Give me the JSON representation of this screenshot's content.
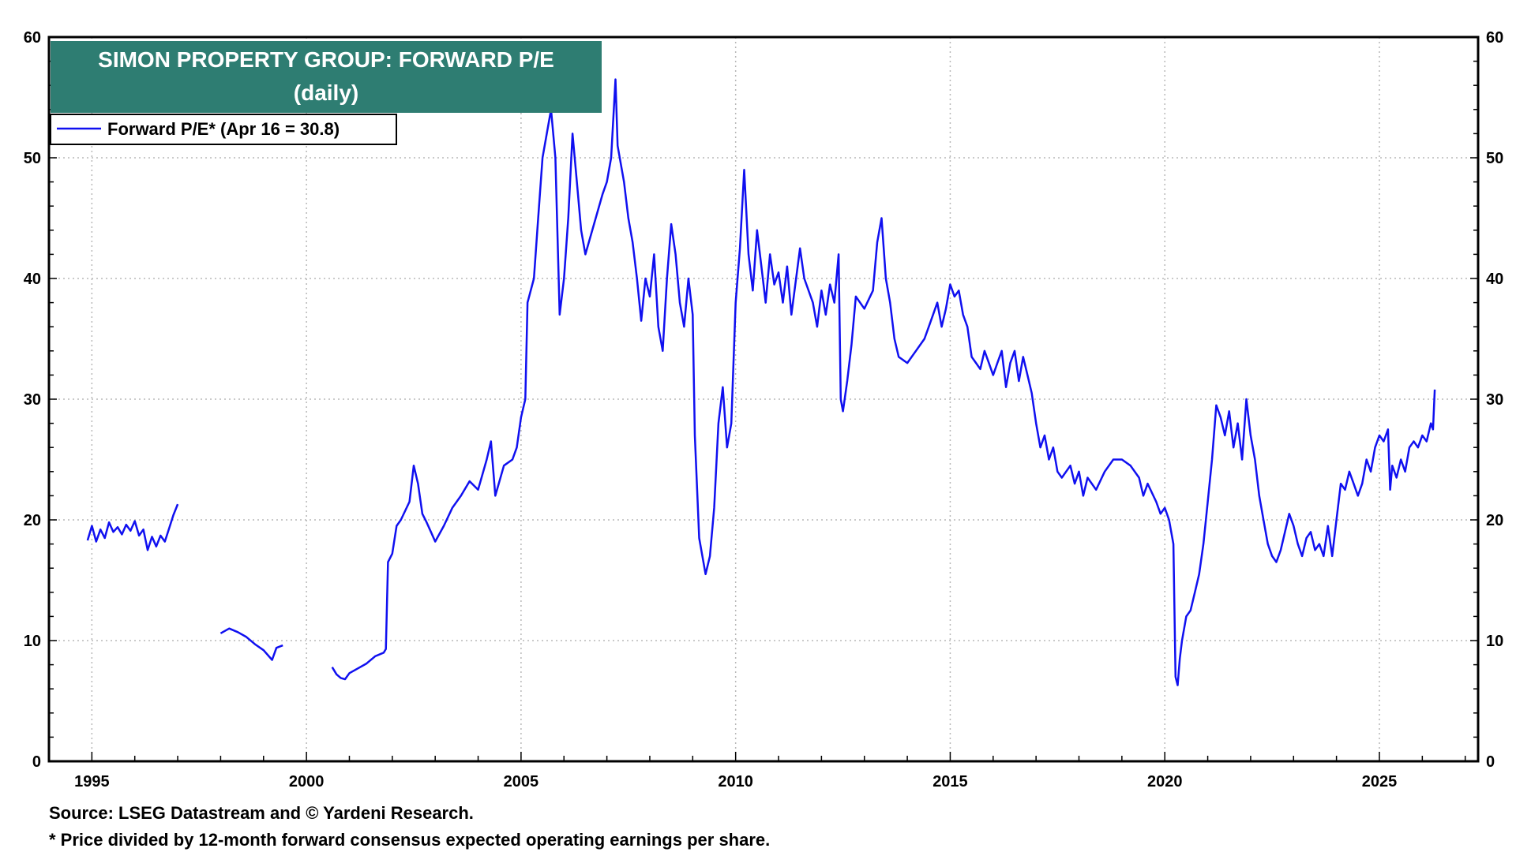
{
  "chart_data": {
    "type": "line",
    "title": "SIMON PROPERTY GROUP: FORWARD P/E",
    "subtitle": "(daily)",
    "xlabel": "",
    "ylabel": "",
    "ylim": [
      0,
      60
    ],
    "xlim": [
      1994.0,
      2027.3
    ],
    "y_ticks": [
      0,
      10,
      20,
      30,
      40,
      50,
      60
    ],
    "x_ticks": [
      1995,
      2000,
      2005,
      2010,
      2015,
      2020,
      2025
    ],
    "grid": true,
    "legend_position": "top-left",
    "line_color": "#1010f0",
    "title_bg_color": "#2e7d72",
    "series": [
      {
        "name": "Forward P/E* (Apr 16 = 30.8)",
        "segments": [
          [
            [
              1994.9,
              18.3
            ],
            [
              1995.0,
              19.5
            ],
            [
              1995.1,
              18.2
            ],
            [
              1995.2,
              19.2
            ],
            [
              1995.3,
              18.5
            ],
            [
              1995.4,
              19.8
            ],
            [
              1995.5,
              19.0
            ],
            [
              1995.6,
              19.4
            ],
            [
              1995.7,
              18.8
            ],
            [
              1995.8,
              19.6
            ],
            [
              1995.9,
              19.1
            ],
            [
              1996.0,
              19.9
            ],
            [
              1996.1,
              18.7
            ],
            [
              1996.2,
              19.2
            ],
            [
              1996.3,
              17.5
            ],
            [
              1996.4,
              18.6
            ],
            [
              1996.5,
              17.8
            ],
            [
              1996.6,
              18.7
            ],
            [
              1996.7,
              18.2
            ],
            [
              1996.8,
              19.3
            ],
            [
              1996.9,
              20.4
            ],
            [
              1997.0,
              21.3
            ]
          ],
          [
            [
              1998.0,
              10.6
            ],
            [
              1998.2,
              11.0
            ],
            [
              1998.4,
              10.7
            ],
            [
              1998.6,
              10.3
            ],
            [
              1998.8,
              9.7
            ],
            [
              1999.0,
              9.2
            ],
            [
              1999.2,
              8.4
            ],
            [
              1999.3,
              9.4
            ],
            [
              1999.45,
              9.6
            ]
          ],
          [
            [
              2000.6,
              7.8
            ],
            [
              2000.7,
              7.2
            ],
            [
              2000.8,
              6.9
            ],
            [
              2000.9,
              6.8
            ],
            [
              2001.0,
              7.3
            ],
            [
              2001.2,
              7.7
            ],
            [
              2001.4,
              8.1
            ],
            [
              2001.6,
              8.7
            ],
            [
              2001.8,
              9.0
            ],
            [
              2001.85,
              9.3
            ],
            [
              2001.9,
              16.5
            ],
            [
              2002.0,
              17.2
            ],
            [
              2002.1,
              19.5
            ],
            [
              2002.2,
              20.0
            ],
            [
              2002.4,
              21.5
            ],
            [
              2002.5,
              24.5
            ],
            [
              2002.6,
              23.0
            ],
            [
              2002.7,
              20.5
            ],
            [
              2002.8,
              19.8
            ],
            [
              2002.9,
              19.0
            ],
            [
              2003.0,
              18.2
            ],
            [
              2003.2,
              19.5
            ],
            [
              2003.4,
              21.0
            ],
            [
              2003.6,
              22.0
            ],
            [
              2003.8,
              23.2
            ],
            [
              2004.0,
              22.5
            ],
            [
              2004.2,
              25.0
            ],
            [
              2004.3,
              26.5
            ],
            [
              2004.4,
              22.0
            ],
            [
              2004.6,
              24.5
            ],
            [
              2004.8,
              25.0
            ],
            [
              2004.9,
              26.0
            ],
            [
              2005.0,
              28.5
            ],
            [
              2005.1,
              30.0
            ],
            [
              2005.15,
              38.0
            ],
            [
              2005.3,
              40.0
            ],
            [
              2005.4,
              45.0
            ],
            [
              2005.5,
              50.0
            ],
            [
              2005.6,
              52.0
            ],
            [
              2005.7,
              54.0
            ],
            [
              2005.8,
              50.0
            ],
            [
              2005.9,
              37.0
            ],
            [
              2006.0,
              40.0
            ],
            [
              2006.1,
              45.0
            ],
            [
              2006.2,
              52.0
            ],
            [
              2006.3,
              48.0
            ],
            [
              2006.4,
              44.0
            ],
            [
              2006.5,
              42.0
            ],
            [
              2006.7,
              44.5
            ],
            [
              2006.9,
              47.0
            ],
            [
              2007.0,
              48.0
            ],
            [
              2007.1,
              50.0
            ],
            [
              2007.2,
              56.5
            ],
            [
              2007.25,
              51.0
            ],
            [
              2007.4,
              48.0
            ],
            [
              2007.5,
              45.0
            ],
            [
              2007.6,
              43.0
            ],
            [
              2007.7,
              40.0
            ],
            [
              2007.8,
              36.5
            ],
            [
              2007.9,
              40.0
            ],
            [
              2008.0,
              38.5
            ],
            [
              2008.1,
              42.0
            ],
            [
              2008.2,
              36.0
            ],
            [
              2008.3,
              34.0
            ],
            [
              2008.4,
              40.0
            ],
            [
              2008.5,
              44.5
            ],
            [
              2008.6,
              42.0
            ],
            [
              2008.7,
              38.0
            ],
            [
              2008.8,
              36.0
            ],
            [
              2008.9,
              40.0
            ],
            [
              2009.0,
              37.0
            ],
            [
              2009.05,
              27.0
            ],
            [
              2009.15,
              18.5
            ],
            [
              2009.3,
              15.5
            ],
            [
              2009.4,
              17.0
            ],
            [
              2009.5,
              21.0
            ],
            [
              2009.6,
              28.0
            ],
            [
              2009.7,
              31.0
            ],
            [
              2009.8,
              26.0
            ],
            [
              2009.9,
              28.0
            ],
            [
              2010.0,
              38.0
            ],
            [
              2010.1,
              42.5
            ],
            [
              2010.2,
              49.0
            ],
            [
              2010.3,
              42.0
            ],
            [
              2010.4,
              39.0
            ],
            [
              2010.5,
              44.0
            ],
            [
              2010.6,
              41.0
            ],
            [
              2010.7,
              38.0
            ],
            [
              2010.8,
              42.0
            ],
            [
              2010.9,
              39.5
            ],
            [
              2011.0,
              40.5
            ],
            [
              2011.1,
              38.0
            ],
            [
              2011.2,
              41.0
            ],
            [
              2011.3,
              37.0
            ],
            [
              2011.5,
              42.5
            ],
            [
              2011.6,
              40.0
            ],
            [
              2011.8,
              38.0
            ],
            [
              2011.9,
              36.0
            ],
            [
              2012.0,
              39.0
            ],
            [
              2012.1,
              37.0
            ],
            [
              2012.2,
              39.5
            ],
            [
              2012.3,
              38.0
            ],
            [
              2012.4,
              42.0
            ],
            [
              2012.45,
              30.0
            ],
            [
              2012.5,
              29.0
            ],
            [
              2012.6,
              31.5
            ],
            [
              2012.7,
              34.5
            ],
            [
              2012.8,
              38.5
            ],
            [
              2013.0,
              37.5
            ],
            [
              2013.2,
              39.0
            ],
            [
              2013.3,
              43.0
            ],
            [
              2013.4,
              45.0
            ],
            [
              2013.5,
              40.0
            ],
            [
              2013.6,
              38.0
            ],
            [
              2013.7,
              35.0
            ],
            [
              2013.8,
              33.5
            ],
            [
              2014.0,
              33.0
            ],
            [
              2014.2,
              34.0
            ],
            [
              2014.4,
              35.0
            ],
            [
              2014.5,
              36.0
            ],
            [
              2014.6,
              37.0
            ],
            [
              2014.7,
              38.0
            ],
            [
              2014.8,
              36.0
            ],
            [
              2014.9,
              37.5
            ],
            [
              2015.0,
              39.5
            ],
            [
              2015.1,
              38.5
            ],
            [
              2015.2,
              39.0
            ],
            [
              2015.3,
              37.0
            ],
            [
              2015.4,
              36.0
            ],
            [
              2015.5,
              33.5
            ],
            [
              2015.6,
              33.0
            ],
            [
              2015.7,
              32.5
            ],
            [
              2015.8,
              34.0
            ],
            [
              2015.9,
              33.0
            ],
            [
              2016.0,
              32.0
            ],
            [
              2016.1,
              33.0
            ],
            [
              2016.2,
              34.0
            ],
            [
              2016.3,
              31.0
            ],
            [
              2016.4,
              33.0
            ],
            [
              2016.5,
              34.0
            ],
            [
              2016.6,
              31.5
            ],
            [
              2016.7,
              33.5
            ],
            [
              2016.8,
              32.0
            ],
            [
              2016.9,
              30.5
            ],
            [
              2017.0,
              28.0
            ],
            [
              2017.1,
              26.0
            ],
            [
              2017.2,
              27.0
            ],
            [
              2017.3,
              25.0
            ],
            [
              2017.4,
              26.0
            ],
            [
              2017.5,
              24.0
            ],
            [
              2017.6,
              23.5
            ],
            [
              2017.8,
              24.5
            ],
            [
              2017.9,
              23.0
            ],
            [
              2018.0,
              24.0
            ],
            [
              2018.1,
              22.0
            ],
            [
              2018.2,
              23.5
            ],
            [
              2018.3,
              23.0
            ],
            [
              2018.4,
              22.5
            ],
            [
              2018.6,
              24.0
            ],
            [
              2018.8,
              25.0
            ],
            [
              2019.0,
              25.0
            ],
            [
              2019.2,
              24.5
            ],
            [
              2019.4,
              23.5
            ],
            [
              2019.5,
              22.0
            ],
            [
              2019.6,
              23.0
            ],
            [
              2019.8,
              21.5
            ],
            [
              2019.9,
              20.5
            ],
            [
              2020.0,
              21.0
            ],
            [
              2020.1,
              20.0
            ],
            [
              2020.2,
              18.0
            ],
            [
              2020.25,
              7.0
            ],
            [
              2020.3,
              6.3
            ],
            [
              2020.35,
              8.5
            ],
            [
              2020.4,
              10.0
            ],
            [
              2020.5,
              12.0
            ],
            [
              2020.6,
              12.5
            ],
            [
              2020.7,
              14.0
            ],
            [
              2020.8,
              15.5
            ],
            [
              2020.9,
              18.0
            ],
            [
              2021.0,
              21.5
            ],
            [
              2021.1,
              25.0
            ],
            [
              2021.2,
              29.5
            ],
            [
              2021.3,
              28.5
            ],
            [
              2021.4,
              27.0
            ],
            [
              2021.5,
              29.0
            ],
            [
              2021.6,
              26.0
            ],
            [
              2021.7,
              28.0
            ],
            [
              2021.8,
              25.0
            ],
            [
              2021.9,
              30.0
            ],
            [
              2022.0,
              27.0
            ],
            [
              2022.1,
              25.0
            ],
            [
              2022.2,
              22.0
            ],
            [
              2022.3,
              20.0
            ],
            [
              2022.4,
              18.0
            ],
            [
              2022.5,
              17.0
            ],
            [
              2022.6,
              16.5
            ],
            [
              2022.7,
              17.5
            ],
            [
              2022.8,
              19.0
            ],
            [
              2022.9,
              20.5
            ],
            [
              2023.0,
              19.5
            ],
            [
              2023.1,
              18.0
            ],
            [
              2023.2,
              17.0
            ],
            [
              2023.3,
              18.5
            ],
            [
              2023.4,
              19.0
            ],
            [
              2023.5,
              17.5
            ],
            [
              2023.6,
              18.0
            ],
            [
              2023.7,
              17.0
            ],
            [
              2023.8,
              19.5
            ],
            [
              2023.9,
              17.0
            ],
            [
              2024.0,
              20.0
            ],
            [
              2024.1,
              23.0
            ],
            [
              2024.2,
              22.5
            ],
            [
              2024.3,
              24.0
            ],
            [
              2024.4,
              23.0
            ],
            [
              2024.5,
              22.0
            ],
            [
              2024.6,
              23.0
            ],
            [
              2024.7,
              25.0
            ],
            [
              2024.8,
              24.0
            ],
            [
              2024.9,
              26.0
            ],
            [
              2025.0,
              27.0
            ],
            [
              2025.1,
              26.5
            ],
            [
              2025.2,
              27.5
            ],
            [
              2025.25,
              22.5
            ],
            [
              2025.3,
              24.5
            ],
            [
              2025.4,
              23.5
            ],
            [
              2025.5,
              25.0
            ],
            [
              2025.6,
              24.0
            ],
            [
              2025.7,
              26.0
            ],
            [
              2025.8,
              26.5
            ],
            [
              2025.9,
              26.0
            ],
            [
              2026.0,
              27.0
            ],
            [
              2026.1,
              26.5
            ],
            [
              2026.2,
              28.0
            ],
            [
              2026.25,
              27.5
            ],
            [
              2026.29,
              30.8
            ]
          ]
        ]
      }
    ]
  },
  "footer": {
    "source": "Source: LSEG Datastream and © Yardeni Research.",
    "note": "* Price divided by 12-month forward consensus expected operating earnings per share."
  }
}
